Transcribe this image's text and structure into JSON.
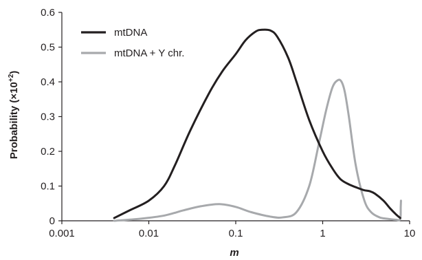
{
  "chart_data": {
    "type": "line",
    "x_scale": "log",
    "xlim": [
      0.001,
      10
    ],
    "ylim": [
      0,
      0.6
    ],
    "x_ticks": [
      0.001,
      0.01,
      0.1,
      1,
      10
    ],
    "x_tick_labels": [
      "0.001",
      "0.01",
      "0.1",
      "1",
      "10"
    ],
    "y_ticks": [
      0,
      0.1,
      0.2,
      0.3,
      0.4,
      0.5,
      0.6
    ],
    "y_tick_labels": [
      "0",
      "0.1",
      "0.2",
      "0.3",
      "0.4",
      "0.5",
      "0.6"
    ],
    "xlabel": "m",
    "ylabel": "Probability (×10",
    "ylabel_superscript": "+2",
    "ylabel_suffix": ")",
    "grid": false,
    "legend_position": "top-left",
    "series": [
      {
        "name": "mtDNA",
        "color": "#231f20",
        "x": [
          0.004,
          0.006,
          0.01,
          0.015,
          0.02,
          0.03,
          0.05,
          0.07,
          0.1,
          0.13,
          0.17,
          0.2,
          0.25,
          0.3,
          0.4,
          0.5,
          0.7,
          1.0,
          1.3,
          1.6,
          2.0,
          2.5,
          3.0,
          3.5,
          4.0,
          5.0,
          6.0,
          7.0,
          7.8
        ],
        "y": [
          0.008,
          0.03,
          0.058,
          0.1,
          0.16,
          0.26,
          0.37,
          0.43,
          0.48,
          0.52,
          0.545,
          0.55,
          0.548,
          0.53,
          0.47,
          0.4,
          0.29,
          0.2,
          0.15,
          0.12,
          0.105,
          0.095,
          0.088,
          0.085,
          0.078,
          0.058,
          0.035,
          0.018,
          0.008
        ]
      },
      {
        "name": "mtDNA + Y chr.",
        "color": "#a7a9ac",
        "x": [
          0.004,
          0.008,
          0.015,
          0.025,
          0.04,
          0.065,
          0.1,
          0.15,
          0.25,
          0.35,
          0.5,
          0.7,
          0.9,
          1.1,
          1.3,
          1.5,
          1.65,
          1.8,
          2.0,
          2.4,
          3.0,
          3.6,
          4.5,
          5.5,
          7.0,
          7.8,
          7.9,
          7.95
        ],
        "y": [
          0.0,
          0.006,
          0.015,
          0.03,
          0.042,
          0.048,
          0.04,
          0.025,
          0.012,
          0.01,
          0.025,
          0.1,
          0.22,
          0.32,
          0.385,
          0.405,
          0.4,
          0.37,
          0.3,
          0.16,
          0.06,
          0.025,
          0.01,
          0.006,
          0.003,
          0.005,
          0.04,
          0.058
        ]
      }
    ]
  }
}
